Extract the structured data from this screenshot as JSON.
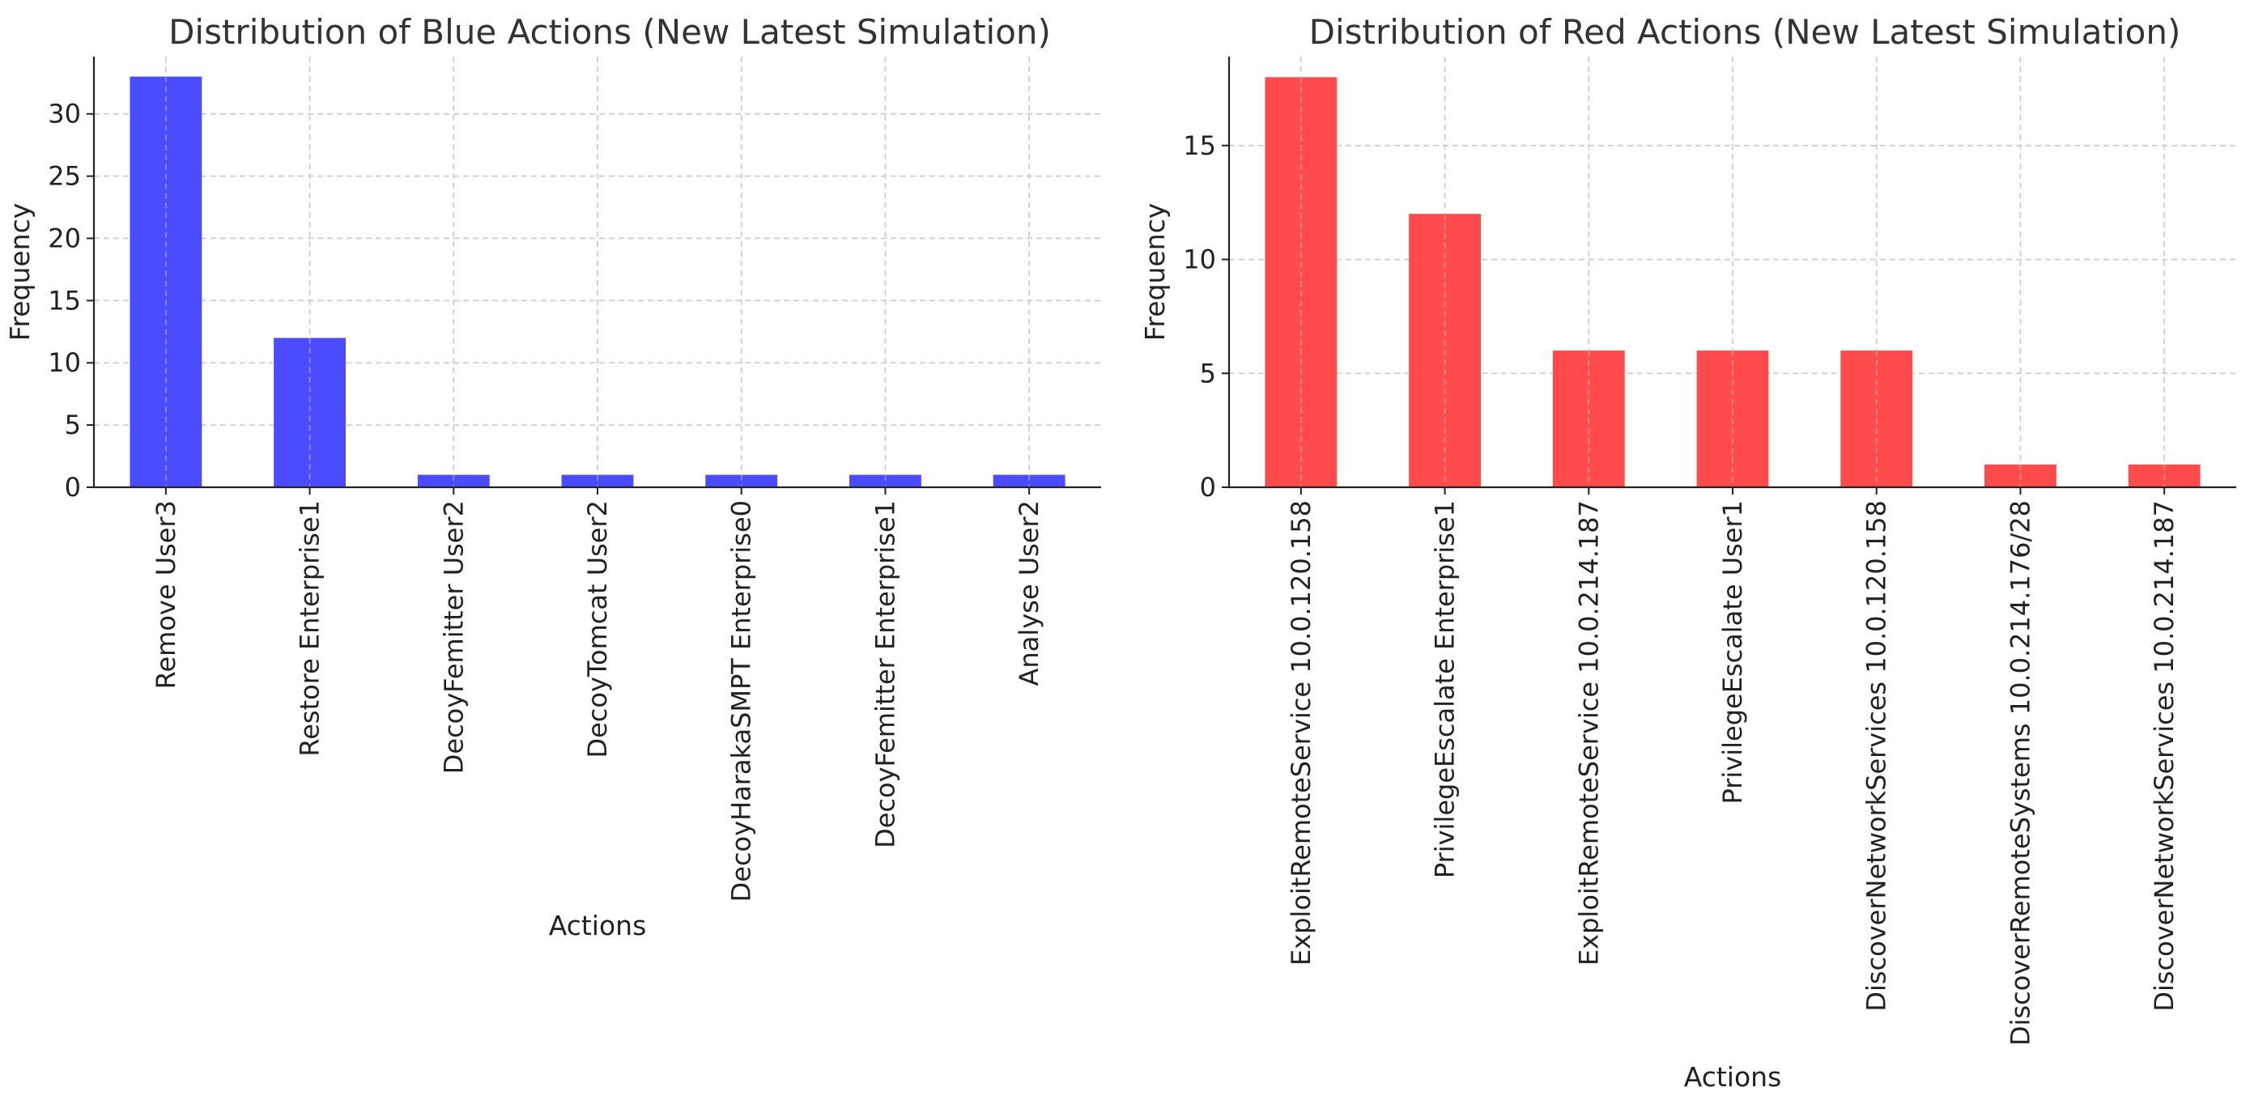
{
  "chart_data": [
    {
      "type": "bar",
      "title": "Distribution of Blue Actions (New Latest Simulation)",
      "xlabel": "Actions",
      "ylabel": "Frequency",
      "categories": [
        "Remove User3",
        "Restore Enterprise1",
        "DecoyFemitter User2",
        "DecoyTomcat User2",
        "DecoyHarakaSMPT Enterprise0",
        "DecoyFemitter Enterprise1",
        "Analyse User2"
      ],
      "values": [
        33,
        12,
        1,
        1,
        1,
        1,
        1
      ],
      "ylim": [
        0,
        34.6
      ],
      "yticks": [
        0,
        5,
        10,
        15,
        20,
        25,
        30
      ],
      "color": "#4b4bff",
      "grid": true,
      "legend": "none"
    },
    {
      "type": "bar",
      "title": "Distribution of Red Actions (New Latest Simulation)",
      "xlabel": "Actions",
      "ylabel": "Frequency",
      "categories": [
        "ExploitRemoteService 10.0.120.158",
        "PrivilegeEscalate Enterprise1",
        "ExploitRemoteService 10.0.214.187",
        "PrivilegeEscalate User1",
        "DiscoverNetworkServices 10.0.120.158",
        "DiscoverRemoteSystems 10.0.214.176/28",
        "DiscoverNetworkServices 10.0.214.187"
      ],
      "values": [
        18,
        12,
        6,
        6,
        6,
        1,
        1
      ],
      "ylim": [
        0,
        18.9
      ],
      "yticks": [
        0,
        5,
        10,
        15
      ],
      "color": "#ff4b4b",
      "grid": true,
      "legend": "none"
    }
  ]
}
